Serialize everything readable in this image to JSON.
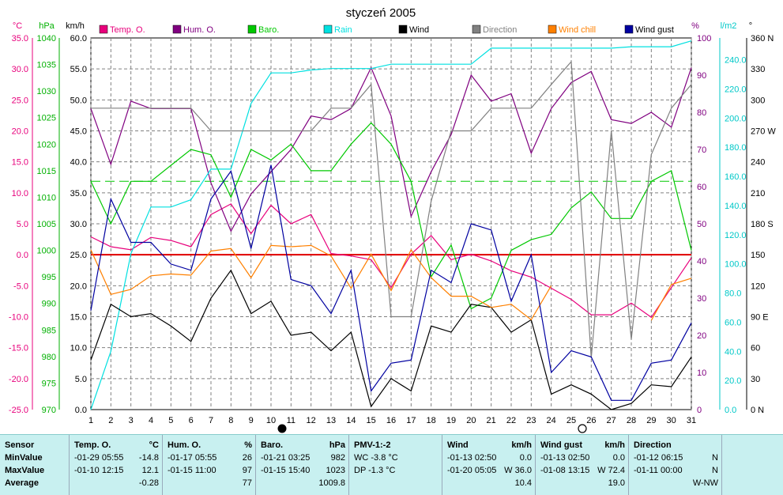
{
  "chart_data": {
    "type": "line",
    "title": "styczeń 2005",
    "x": [
      1,
      2,
      3,
      4,
      5,
      6,
      7,
      8,
      9,
      10,
      11,
      12,
      13,
      14,
      15,
      16,
      17,
      18,
      19,
      20,
      21,
      22,
      23,
      24,
      25,
      26,
      27,
      28,
      29,
      30,
      31
    ],
    "xlim": [
      1,
      31
    ],
    "axes": {
      "temp": {
        "unit": "°C",
        "range": [
          -25,
          35
        ],
        "ticks": [
          "35.0",
          "30.0",
          "25.0",
          "20.0",
          "15.0",
          "10.0",
          "5.0",
          "0.0",
          "-5.0",
          "-10.0",
          "-15.0",
          "-20.0",
          "-25.0"
        ]
      },
      "baro": {
        "unit": "hPa",
        "range": [
          970,
          1040
        ],
        "ticks": [
          "1040",
          "1035",
          "1030",
          "1025",
          "1020",
          "1015",
          "1010",
          "1005",
          "1000",
          "995",
          "990",
          "985",
          "980",
          "975",
          "970"
        ]
      },
      "wind": {
        "unit": "km/h",
        "range": [
          0,
          60
        ],
        "ticks": [
          "60.0",
          "55.0",
          "50.0",
          "45.0",
          "40.0",
          "35.0",
          "30.0",
          "25.0",
          "20.0",
          "15.0",
          "10.0",
          "5.0",
          "0.0"
        ]
      },
      "hum": {
        "unit": "%",
        "range": [
          0,
          100
        ],
        "ticks": [
          "100",
          "90",
          "80",
          "70",
          "60",
          "50",
          "40",
          "30",
          "20",
          "10",
          "0"
        ]
      },
      "rain": {
        "unit": "l/m2",
        "range": [
          0,
          255
        ],
        "ticks": [
          "240.0",
          "220.0",
          "200.0",
          "180.0",
          "160.0",
          "140.0",
          "120.0",
          "100.0",
          "80.0",
          "60.0",
          "40.0",
          "20.0",
          "0.0"
        ]
      },
      "dir": {
        "unit": "°",
        "range": [
          0,
          360
        ],
        "ticks": [
          "360 N",
          "330",
          "300",
          "270 W",
          "240",
          "210",
          "180 S",
          "150",
          "120",
          "90 E",
          "60",
          "30",
          "0 N"
        ]
      }
    },
    "series": [
      {
        "name": "Temp. O.",
        "axis": "temp",
        "color": "#e8007c",
        "values": [
          2.9,
          1.3,
          0.8,
          2.8,
          2.3,
          1.3,
          6.5,
          8.2,
          3.4,
          8.0,
          5.0,
          6.5,
          0.2,
          -0.2,
          -0.8,
          -5.3,
          0.1,
          3.1,
          -0.8,
          0.1,
          -1.0,
          -2.6,
          -3.6,
          -5.4,
          -7.2,
          -9.7,
          -9.7,
          -7.8,
          -10.1,
          -5.3,
          -0.5
        ]
      },
      {
        "name": "Hum. O.",
        "axis": "hum",
        "color": "#800080",
        "values": [
          81,
          66,
          83,
          81,
          81,
          81,
          61,
          48,
          58,
          64,
          70,
          79,
          78,
          81,
          92,
          79,
          52,
          64,
          74,
          90,
          83,
          85,
          69,
          81,
          88,
          91,
          78,
          77,
          80,
          76,
          92
        ]
      },
      {
        "name": "Baro.",
        "axis": "baro",
        "color": "#00c800",
        "values": [
          1013,
          1005,
          1013,
          1013,
          1016,
          1019,
          1018,
          1010,
          1019,
          1017,
          1020,
          1015,
          1015,
          1020,
          1024,
          1020,
          1013,
          995,
          1001,
          989,
          991,
          1000,
          1002,
          1003,
          1008,
          1011,
          1006,
          1006,
          1013,
          1015,
          1000
        ]
      },
      {
        "name": "Rain",
        "axis": "rain",
        "color": "#00e0e0",
        "values": [
          0,
          40,
          107,
          139,
          139,
          144,
          165,
          165,
          210,
          231,
          231,
          233,
          234,
          234,
          234,
          237,
          237,
          237,
          237,
          237,
          248,
          248,
          248,
          248,
          248,
          248,
          248,
          249,
          249,
          249,
          253
        ]
      },
      {
        "name": "Wind",
        "axis": "wind",
        "color": "#000000",
        "values": [
          8,
          17,
          15,
          15.5,
          13.5,
          11,
          18,
          22.5,
          15.5,
          17.5,
          12,
          12.5,
          9.5,
          12.5,
          0.5,
          5,
          3,
          13.5,
          12.5,
          17,
          16.5,
          12.5,
          14.5,
          2.5,
          4,
          2.5,
          0,
          1,
          4,
          3.7,
          8.5
        ]
      },
      {
        "name": "Direction",
        "axis": "dir",
        "color": "#808080",
        "values": [
          292,
          292,
          292,
          292,
          292,
          292,
          270,
          270,
          270,
          270,
          270,
          270,
          292,
          292,
          315,
          90,
          90,
          202,
          270,
          270,
          292,
          292,
          292,
          315,
          337,
          50,
          270,
          68,
          247,
          292,
          315
        ]
      },
      {
        "name": "Wind chill",
        "axis": "temp",
        "color": "#ff8000",
        "values": [
          0.8,
          -6.4,
          -5.6,
          -3.4,
          -3.1,
          -3.3,
          0.6,
          1.0,
          -3.7,
          1.5,
          1.3,
          1.5,
          -0.2,
          -5.4,
          0.1,
          -5.8,
          0.8,
          -3.7,
          -6.7,
          -6.7,
          -8.5,
          -8.0,
          -10.5,
          -5.0,
          null,
          null,
          null,
          null,
          -10.6,
          -4.8,
          -3.8
        ]
      },
      {
        "name": "Wind gust",
        "axis": "wind",
        "color": "#0000a0",
        "values": [
          16,
          34,
          27,
          27,
          23.5,
          22.5,
          34,
          38.5,
          26,
          39.5,
          21,
          20,
          15.5,
          22.5,
          3,
          7.5,
          8,
          22.5,
          20.5,
          30,
          29,
          17.5,
          25,
          6,
          9.5,
          8.5,
          1.5,
          1.5,
          7.5,
          8,
          14
        ]
      }
    ],
    "reference_lines": [
      {
        "axis": "temp",
        "value": 0,
        "color": "#e00000",
        "style": "solid"
      },
      {
        "axis": "baro",
        "value": 1013,
        "color": "#00c800",
        "style": "dashed"
      }
    ],
    "moon_phases": [
      {
        "x": 10,
        "phase": "new"
      },
      {
        "x": 25,
        "phase": "full"
      }
    ],
    "legend_placement": "top",
    "grid": true
  },
  "axis_units": {
    "temp": "°C",
    "baro": "hPa",
    "wind": "km/h",
    "hum": "%",
    "rain": "l/m2",
    "dir": "°"
  },
  "summary": {
    "row_labels": {
      "title": "Sensor",
      "min": "MinValue",
      "max": "MaxValue",
      "avg": "Average"
    },
    "temp": {
      "title": "Temp. O.",
      "unit": "°C",
      "min_date": "-01-29",
      "min_time": "05:55",
      "min_val": "-14.8",
      "max_date": "-01-10",
      "max_time": "12:15",
      "max_val": "12.1",
      "avg": "-0.28"
    },
    "hum": {
      "title": "Hum. O.",
      "unit": "%",
      "min_date": "-01-17",
      "min_time": "05:55",
      "min_val": "26",
      "max_date": "-01-15",
      "max_time": "11:00",
      "max_val": "97",
      "avg": "77"
    },
    "baro": {
      "title": "Baro.",
      "unit": "hPa",
      "min_date": "-01-21",
      "min_time": "03:25",
      "min_val": "982",
      "max_date": "-01-15",
      "max_time": "15:40",
      "max_val": "1023",
      "avg": "1009.8"
    },
    "pmv": {
      "title": "PMV-1:-2",
      "wc": "WC -3.8 °C",
      "dp": "DP -1.3 °C"
    },
    "wind": {
      "title": "Wind",
      "unit": "km/h",
      "min_date": "-01-13",
      "min_time": "02:50",
      "min_val": "0.0",
      "max_date": "-01-20",
      "max_time": "05:05",
      "max_val": "W 36.0",
      "avg": "10.4"
    },
    "gust": {
      "title": "Wind gust",
      "unit": "km/h",
      "min_date": "-01-13",
      "min_time": "02:50",
      "min_val": "0.0",
      "max_date": "-01-08",
      "max_time": "13:15",
      "max_val": "W 72.4",
      "avg": "19.0"
    },
    "dir": {
      "title": "Direction",
      "min_date": "-01-12",
      "min_time": "06:15",
      "min_val": "N",
      "max_date": "-01-11",
      "max_time": "00:00",
      "max_val": "N",
      "avg": "W-NW"
    }
  }
}
